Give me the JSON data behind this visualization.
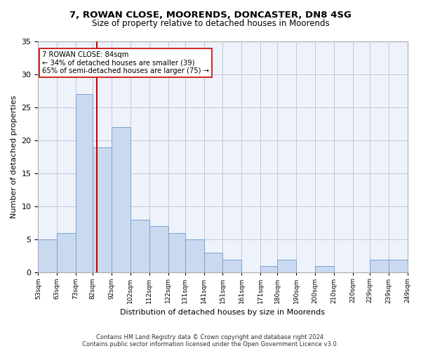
{
  "title1": "7, ROWAN CLOSE, MOORENDS, DONCASTER, DN8 4SG",
  "title2": "Size of property relative to detached houses in Moorends",
  "xlabel": "Distribution of detached houses by size in Moorends",
  "ylabel": "Number of detached properties",
  "bar_left_edges": [
    53,
    63,
    73,
    82,
    92,
    102,
    112,
    122,
    131,
    141,
    151,
    161,
    171,
    180,
    190,
    200,
    210,
    220,
    229,
    239
  ],
  "bar_widths": [
    10,
    10,
    9,
    10,
    10,
    10,
    10,
    9,
    10,
    10,
    10,
    10,
    9,
    10,
    10,
    10,
    10,
    9,
    10,
    10
  ],
  "bar_heights": [
    5,
    6,
    27,
    19,
    22,
    8,
    7,
    6,
    5,
    3,
    2,
    0,
    1,
    2,
    0,
    1,
    0,
    0,
    2,
    2
  ],
  "tick_labels": [
    "53sqm",
    "63sqm",
    "73sqm",
    "82sqm",
    "92sqm",
    "102sqm",
    "112sqm",
    "122sqm",
    "131sqm",
    "141sqm",
    "151sqm",
    "161sqm",
    "171sqm",
    "180sqm",
    "190sqm",
    "200sqm",
    "210sqm",
    "220sqm",
    "229sqm",
    "239sqm",
    "249sqm"
  ],
  "bar_color": "#c9d9f0",
  "bar_edge_color": "#7ba3d4",
  "grid_color": "#c0c8d8",
  "bg_color": "#eef2fa",
  "vline_x": 84,
  "vline_color": "#cc0000",
  "annotation_line1": "7 ROWAN CLOSE: 84sqm",
  "annotation_line2": "← 34% of detached houses are smaller (39)",
  "annotation_line3": "65% of semi-detached houses are larger (75) →",
  "annotation_box_color": "#ffffff",
  "annotation_box_edge": "#cc0000",
  "ylim": [
    0,
    35
  ],
  "yticks": [
    0,
    5,
    10,
    15,
    20,
    25,
    30,
    35
  ],
  "footer1": "Contains HM Land Registry data © Crown copyright and database right 2024.",
  "footer2": "Contains public sector information licensed under the Open Government Licence v3.0."
}
